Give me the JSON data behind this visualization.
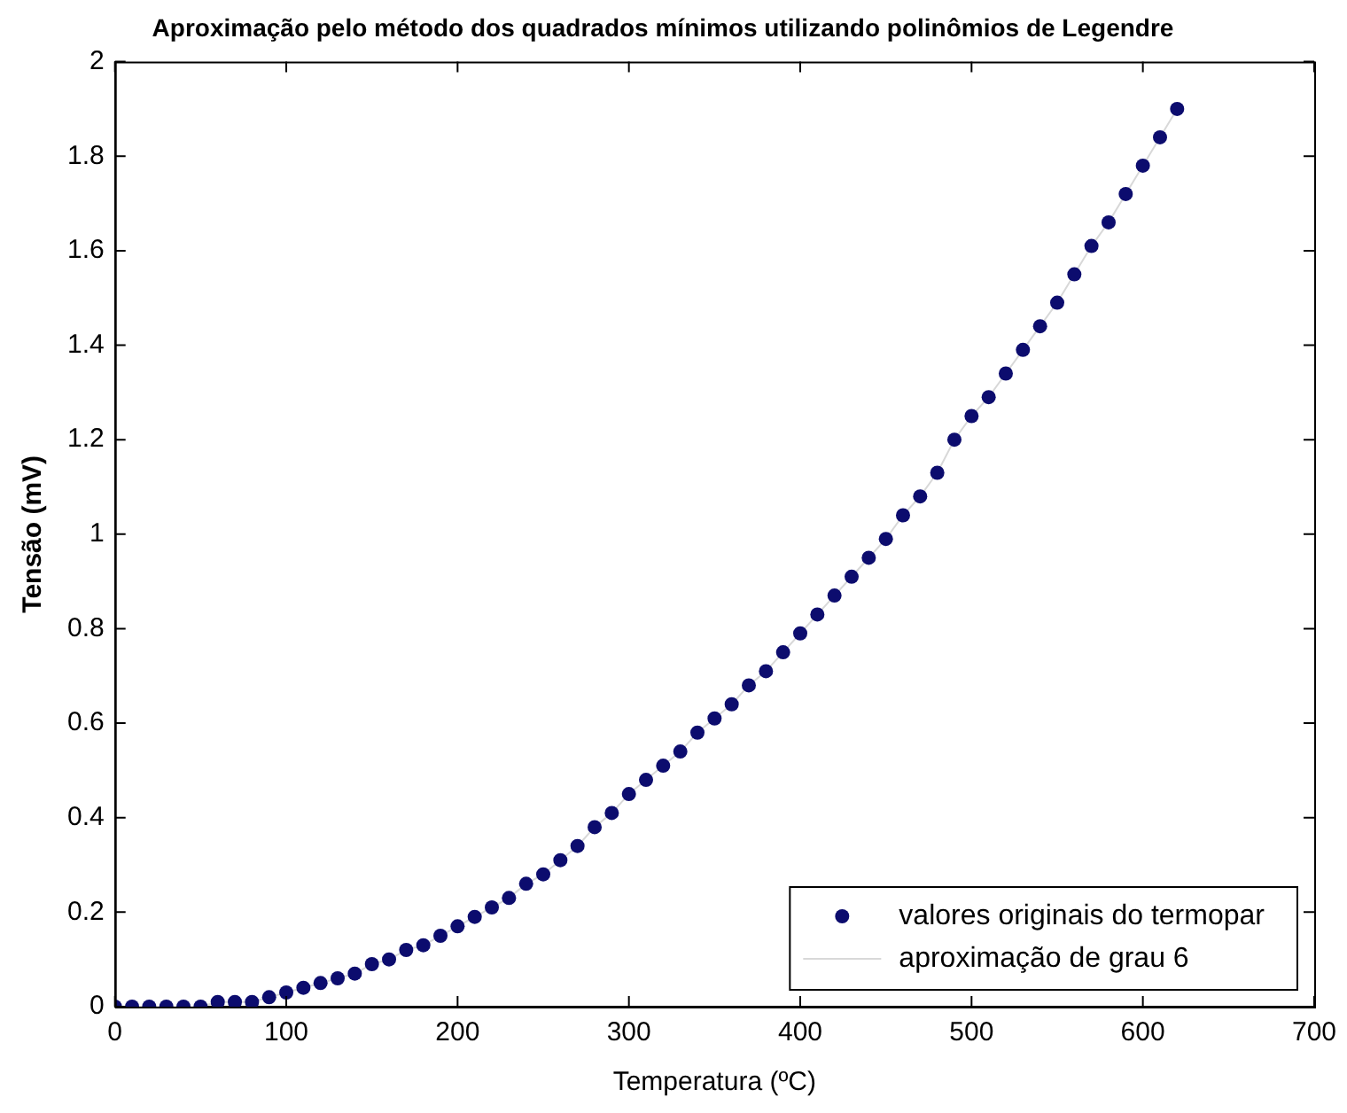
{
  "chart_data": {
    "type": "scatter",
    "title": "Aproximação pelo método dos quadrados mínimos utilizando polinômios de Legendre",
    "xlabel": "Temperatura (ºC)",
    "ylabel": "Tensão (mV)",
    "x": [
      0,
      10,
      20,
      30,
      40,
      50,
      60,
      70,
      80,
      90,
      100,
      110,
      120,
      130,
      140,
      150,
      160,
      170,
      180,
      190,
      200,
      210,
      220,
      230,
      240,
      250,
      260,
      270,
      280,
      290,
      300,
      310,
      320,
      330,
      340,
      350,
      360,
      370,
      380,
      390,
      400,
      410,
      420,
      430,
      440,
      450,
      460,
      470,
      480,
      490,
      500,
      510,
      520,
      530,
      540,
      550,
      560,
      570,
      580,
      590,
      600,
      610,
      620
    ],
    "series": [
      {
        "name": "valores originais do termopar",
        "color": "#0c0c6e",
        "marker": "circle",
        "values": [
          0,
          0,
          0,
          0,
          0,
          0,
          0.01,
          0.01,
          0.01,
          0.02,
          0.03,
          0.04,
          0.05,
          0.06,
          0.07,
          0.09,
          0.1,
          0.12,
          0.13,
          0.15,
          0.17,
          0.19,
          0.21,
          0.23,
          0.26,
          0.28,
          0.31,
          0.34,
          0.38,
          0.41,
          0.45,
          0.48,
          0.51,
          0.54,
          0.58,
          0.61,
          0.64,
          0.68,
          0.71,
          0.75,
          0.79,
          0.83,
          0.87,
          0.91,
          0.95,
          0.99,
          1.04,
          1.08,
          1.13,
          1.2,
          1.25,
          1.29,
          1.34,
          1.39,
          1.44,
          1.49,
          1.55,
          1.61,
          1.66,
          1.72,
          1.78,
          1.84,
          1.9
        ]
      },
      {
        "name": "aproximação de grau 6",
        "type": "line",
        "color": "#d8d8d8",
        "marker": "none",
        "values": [
          0,
          0,
          0,
          0,
          0,
          0,
          0.01,
          0.01,
          0.01,
          0.02,
          0.03,
          0.04,
          0.05,
          0.06,
          0.07,
          0.09,
          0.1,
          0.12,
          0.13,
          0.15,
          0.17,
          0.19,
          0.21,
          0.23,
          0.26,
          0.28,
          0.31,
          0.34,
          0.38,
          0.41,
          0.45,
          0.48,
          0.51,
          0.54,
          0.58,
          0.61,
          0.64,
          0.68,
          0.71,
          0.75,
          0.79,
          0.83,
          0.87,
          0.91,
          0.95,
          0.99,
          1.04,
          1.08,
          1.13,
          1.2,
          1.25,
          1.29,
          1.34,
          1.39,
          1.44,
          1.49,
          1.55,
          1.61,
          1.66,
          1.72,
          1.78,
          1.84,
          1.9
        ]
      }
    ],
    "xlim": [
      0,
      700
    ],
    "xticks": [
      0,
      100,
      200,
      300,
      400,
      500,
      600,
      700
    ],
    "ylim": [
      0,
      2
    ],
    "yticks": [
      0,
      0.2,
      0.4,
      0.6,
      0.8,
      1,
      1.2,
      1.4,
      1.6,
      1.8,
      2
    ],
    "grid": false,
    "legend": "bottom right"
  }
}
